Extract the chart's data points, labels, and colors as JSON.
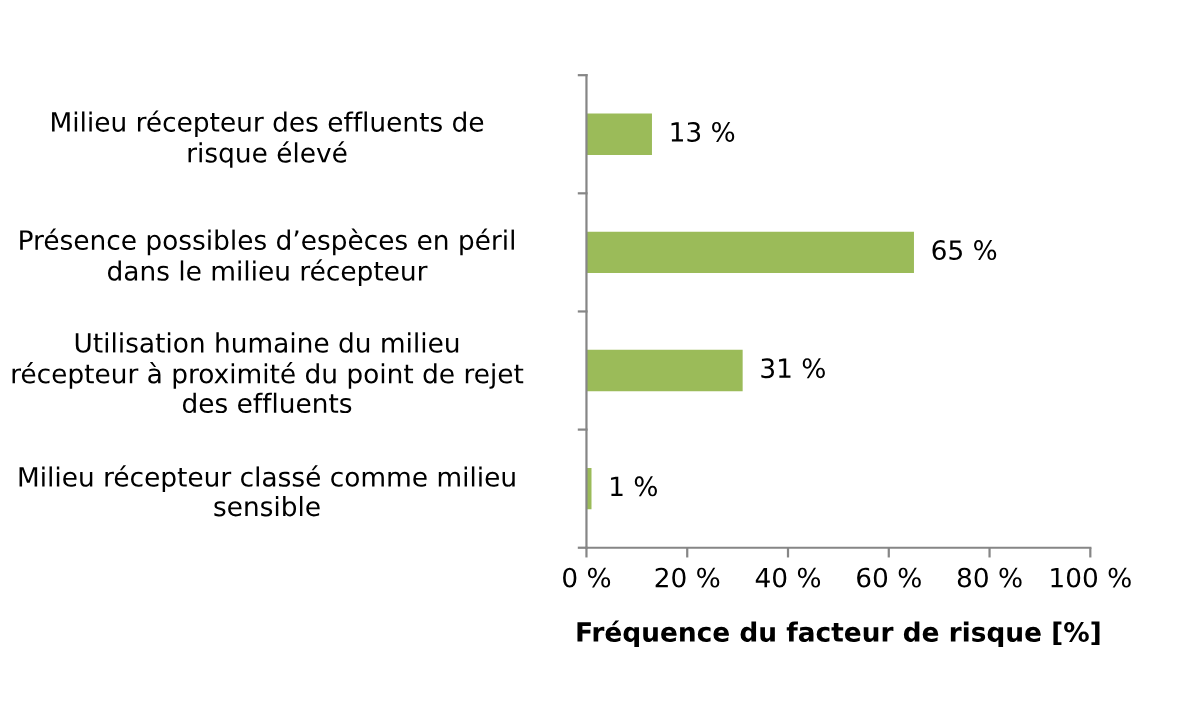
{
  "chart_data": {
    "type": "bar",
    "orientation": "horizontal",
    "categories": [
      "Milieu récepteur des effluents de\nrisque élevé",
      "Présence possibles d’espèces en péril\ndans le milieu récepteur",
      "Utilisation humaine du milieu\nrécepteur à proximité du point de rejet\ndes effluents",
      "Milieu récepteur classé comme milieu\nsensible"
    ],
    "values": [
      13,
      65,
      31,
      1
    ],
    "value_labels": [
      "13 %",
      "65 %",
      "31 %",
      "1 %"
    ],
    "color": "#9bbb59",
    "xlabel": "Fréquence du facteur de risque [%]",
    "xlim": [
      0,
      100
    ],
    "xticks": [
      {
        "value": 0,
        "label": "0 %"
      },
      {
        "value": 20,
        "label": "20 %"
      },
      {
        "value": 40,
        "label": "40 %"
      },
      {
        "value": 60,
        "label": "60 %"
      },
      {
        "value": 80,
        "label": "80 %"
      },
      {
        "value": 100,
        "label": "100 %"
      }
    ],
    "grid": false,
    "legend": false
  }
}
